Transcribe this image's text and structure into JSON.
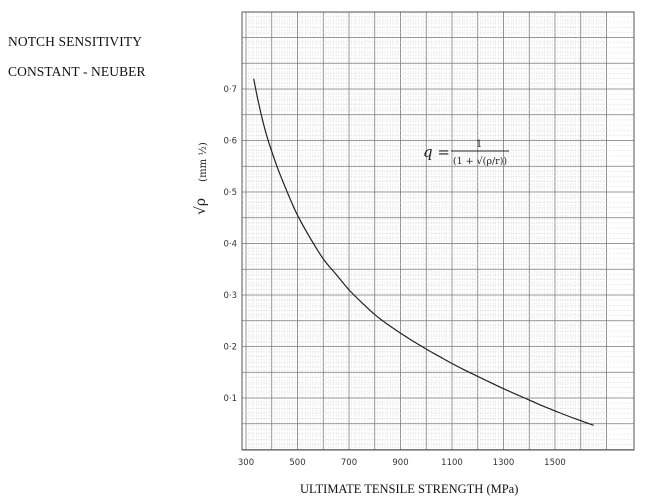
{
  "title_lines": [
    "NOTCH SENSITIVITY",
    "CONSTANT - NEUBER"
  ],
  "chart_data": {
    "type": "line",
    "title": "NOTCH SENSITIVITY CONSTANT - NEUBER",
    "xlabel": "ULTIMATE TENSILE STRENGTH (MPa)",
    "ylabel": "√ρ",
    "ylabel_units": "(mm ½)",
    "xlim": [
      300,
      1700
    ],
    "ylim": [
      0,
      0.8
    ],
    "x_ticks": [
      300,
      500,
      700,
      900,
      1100,
      1300,
      1500
    ],
    "x_tick_labels": [
      "300",
      "500",
      "700",
      "900",
      "1100",
      "1300",
      "1500"
    ],
    "y_ticks": [
      0.1,
      0.2,
      0.3,
      0.4,
      0.5,
      0.6,
      0.7
    ],
    "y_tick_labels": [
      "0·1",
      "0·2",
      "0·3",
      "0·4",
      "0·5",
      "0·6",
      "0·7"
    ],
    "grid": true,
    "formula": {
      "lhs": "q =",
      "numerator": "1",
      "denominator": "(1 + √(ρ/r))"
    },
    "series": [
      {
        "x": [
          330,
          350,
          380,
          420,
          460,
          500,
          550,
          600,
          650,
          700,
          750,
          800,
          850,
          900,
          950,
          1000,
          1050,
          1100,
          1150,
          1200,
          1250,
          1300,
          1350,
          1400,
          1450,
          1500,
          1550,
          1600,
          1650
        ],
        "values": [
          0.72,
          0.67,
          0.61,
          0.55,
          0.5,
          0.455,
          0.41,
          0.37,
          0.34,
          0.31,
          0.285,
          0.262,
          0.243,
          0.226,
          0.21,
          0.195,
          0.181,
          0.167,
          0.154,
          0.142,
          0.13,
          0.118,
          0.107,
          0.096,
          0.085,
          0.075,
          0.065,
          0.056,
          0.047
        ]
      }
    ]
  }
}
